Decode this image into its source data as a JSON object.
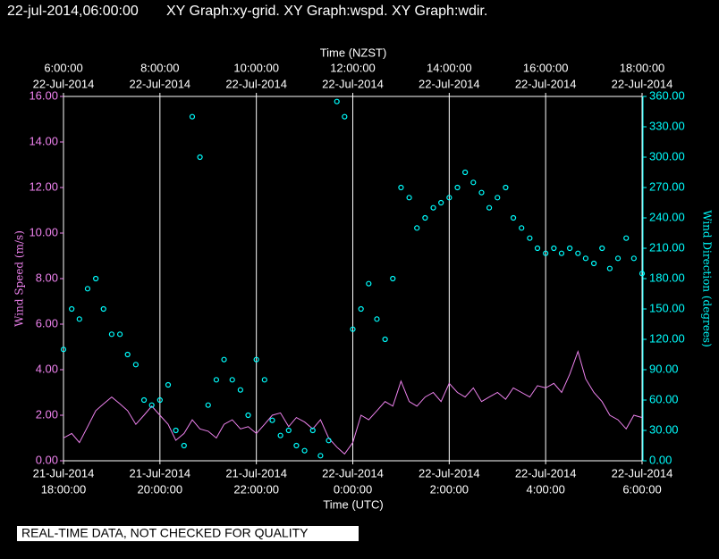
{
  "header": {
    "timestamp": "22-jul-2014,06:00:00",
    "graphs": "XY Graph:xy-grid.  XY Graph:wspd.  XY Graph:wdir."
  },
  "footer": "REAL-TIME DATA, NOT CHECKED FOR QUALITY",
  "chart_data": {
    "type": "line-scatter",
    "xlabel": "Time (UTC)",
    "x2label": "Time (NZST)",
    "ylabel": "Wind Speed (m/s)",
    "y2label": "Wind Direction (degrees)",
    "xlim": [
      18,
      30
    ],
    "xticks": [
      {
        "value": 18,
        "label": "18:00:00",
        "date": "21-Jul-2014"
      },
      {
        "value": 20,
        "label": "20:00:00",
        "date": "21-Jul-2014"
      },
      {
        "value": 22,
        "label": "22:00:00",
        "date": "21-Jul-2014"
      },
      {
        "value": 24,
        "label": "0:00:00",
        "date": "22-Jul-2014"
      },
      {
        "value": 26,
        "label": "2:00:00",
        "date": "22-Jul-2014"
      },
      {
        "value": 28,
        "label": "4:00:00",
        "date": "22-Jul-2014"
      },
      {
        "value": 30,
        "label": "6:00:00",
        "date": "22-Jul-2014"
      }
    ],
    "x2ticks": [
      {
        "value": 18,
        "label": "6:00:00",
        "date": "22-Jul-2014"
      },
      {
        "value": 20,
        "label": "8:00:00",
        "date": "22-Jul-2014"
      },
      {
        "value": 22,
        "label": "10:00:00",
        "date": "22-Jul-2014"
      },
      {
        "value": 24,
        "label": "12:00:00",
        "date": "22-Jul-2014"
      },
      {
        "value": 26,
        "label": "14:00:00",
        "date": "22-Jul-2014"
      },
      {
        "value": 28,
        "label": "16:00:00",
        "date": "22-Jul-2014"
      },
      {
        "value": 30,
        "label": "18:00:00",
        "date": "22-Jul-2014"
      }
    ],
    "ylim": [
      0,
      16
    ],
    "yticks": [
      {
        "value": 0,
        "label": "0.00"
      },
      {
        "value": 2,
        "label": "2.00"
      },
      {
        "value": 4,
        "label": "4.00"
      },
      {
        "value": 6,
        "label": "6.00"
      },
      {
        "value": 8,
        "label": "8.00"
      },
      {
        "value": 10,
        "label": "10.00"
      },
      {
        "value": 12,
        "label": "12.00"
      },
      {
        "value": 14,
        "label": "14.00"
      },
      {
        "value": 16,
        "label": "16.00"
      }
    ],
    "y2lim": [
      0,
      360
    ],
    "y2ticks": [
      {
        "value": 0,
        "label": "0.00"
      },
      {
        "value": 30,
        "label": "30.00"
      },
      {
        "value": 60,
        "label": "60.00"
      },
      {
        "value": 90,
        "label": "90.00"
      },
      {
        "value": 120,
        "label": "120.00"
      },
      {
        "value": 150,
        "label": "150.00"
      },
      {
        "value": 180,
        "label": "180.00"
      },
      {
        "value": 210,
        "label": "210.00"
      },
      {
        "value": 240,
        "label": "240.00"
      },
      {
        "value": 270,
        "label": "270.00"
      },
      {
        "value": 300,
        "label": "300.00"
      },
      {
        "value": 330,
        "label": "330.00"
      },
      {
        "value": 360,
        "label": "360.00"
      }
    ],
    "grid": "x",
    "x": [
      18,
      18.17,
      18.33,
      18.5,
      18.67,
      18.83,
      19,
      19.17,
      19.33,
      19.5,
      19.67,
      19.83,
      20,
      20.17,
      20.33,
      20.5,
      20.67,
      20.83,
      21,
      21.17,
      21.33,
      21.5,
      21.67,
      21.83,
      22,
      22.17,
      22.33,
      22.5,
      22.67,
      22.83,
      23,
      23.17,
      23.33,
      23.5,
      23.67,
      23.83,
      24,
      24.17,
      24.33,
      24.5,
      24.67,
      24.83,
      25,
      25.17,
      25.33,
      25.5,
      25.67,
      25.83,
      26,
      26.17,
      26.33,
      26.5,
      26.67,
      26.83,
      27,
      27.17,
      27.33,
      27.5,
      27.67,
      27.83,
      28,
      28.17,
      28.33,
      28.5,
      28.67,
      28.83,
      29,
      29.17,
      29.33,
      29.5,
      29.67,
      29.83,
      30
    ],
    "series": [
      {
        "kind": "line",
        "axis": "y",
        "color": "#ee82ee",
        "values": [
          1.0,
          1.2,
          0.8,
          1.5,
          2.2,
          2.5,
          2.8,
          2.5,
          2.2,
          1.6,
          2.0,
          2.4,
          2.0,
          1.6,
          0.9,
          1.2,
          1.8,
          1.4,
          1.3,
          1.0,
          1.6,
          1.8,
          1.4,
          1.5,
          1.2,
          1.6,
          2.0,
          2.1,
          1.5,
          1.9,
          1.7,
          1.4,
          1.8,
          1.0,
          0.6,
          0.3,
          0.8,
          2.0,
          1.8,
          2.2,
          2.6,
          2.4,
          3.5,
          2.6,
          2.4,
          2.8,
          3.0,
          2.6,
          3.4,
          3.0,
          2.8,
          3.2,
          2.6,
          2.8,
          3.0,
          2.7,
          3.2,
          3.0,
          2.8,
          3.3,
          3.2,
          3.4,
          3.0,
          3.8,
          4.8,
          3.6,
          3.0,
          2.6,
          2.0,
          1.8,
          1.4,
          2.0,
          1.9
        ]
      },
      {
        "kind": "scatter",
        "axis": "y2",
        "color": "#00ffff",
        "values": [
          110,
          150,
          140,
          170,
          180,
          150,
          125,
          125,
          105,
          95,
          60,
          55,
          60,
          75,
          30,
          15,
          340,
          300,
          55,
          80,
          100,
          80,
          70,
          45,
          100,
          80,
          40,
          25,
          30,
          15,
          10,
          30,
          5,
          20,
          355,
          340,
          130,
          150,
          175,
          140,
          120,
          180,
          270,
          260,
          230,
          240,
          250,
          255,
          260,
          270,
          285,
          275,
          265,
          250,
          260,
          270,
          240,
          230,
          220,
          210,
          205,
          210,
          205,
          210,
          205,
          200,
          195,
          210,
          190,
          200,
          220,
          200,
          185
        ]
      }
    ]
  }
}
